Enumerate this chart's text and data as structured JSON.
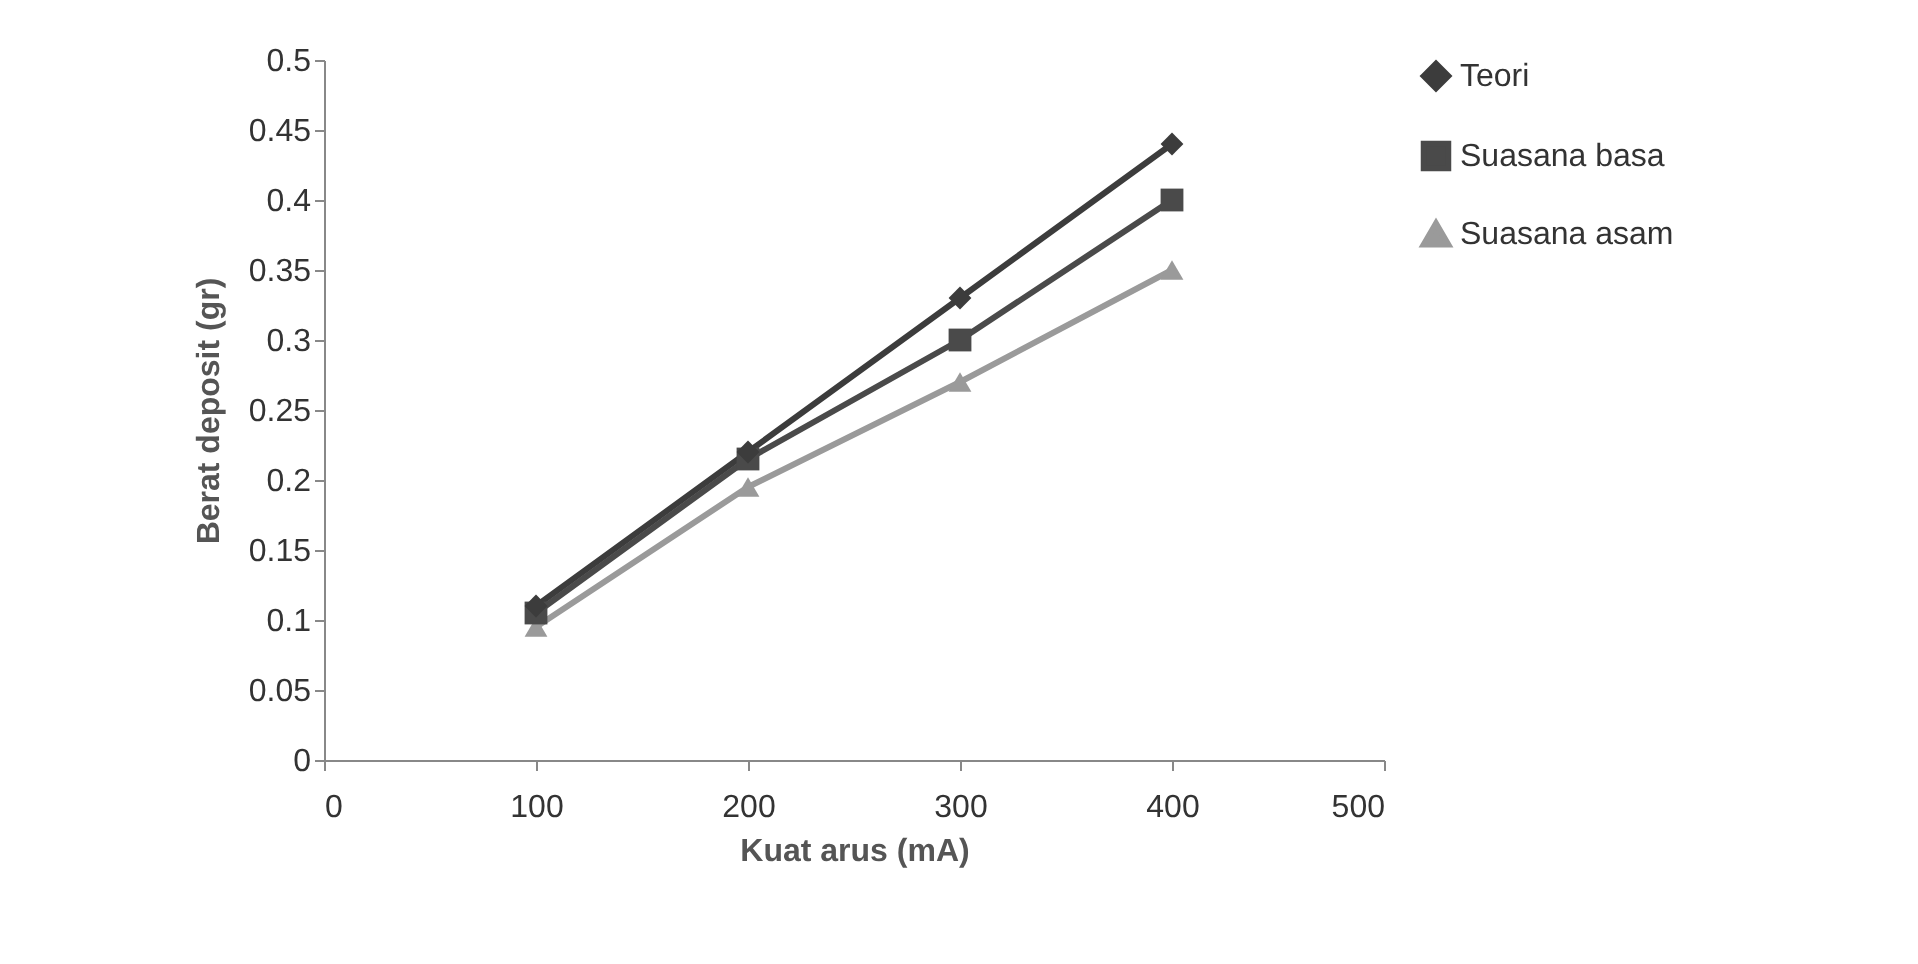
{
  "chart_data": {
    "type": "line",
    "xlabel": "Kuat arus (mA)",
    "ylabel": "Berat deposit     (gr)",
    "x": [
      100,
      200,
      300,
      400
    ],
    "series": [
      {
        "name": "Teori",
        "color": "#3c3c3c",
        "marker": "diamond",
        "values": [
          0.11,
          0.22,
          0.33,
          0.44
        ]
      },
      {
        "name": "Suasana basa",
        "color": "#4a4a4a",
        "marker": "square",
        "values": [
          0.105,
          0.215,
          0.3,
          0.4
        ]
      },
      {
        "name": "Suasana asam",
        "color": "#9a9a9a",
        "marker": "triangle",
        "values": [
          0.095,
          0.195,
          0.27,
          0.35
        ]
      }
    ],
    "xlim": [
      0,
      500
    ],
    "xticks": [
      0,
      100,
      200,
      300,
      400,
      500
    ],
    "ylim": [
      0,
      0.5
    ],
    "yticks": [
      0,
      0.05,
      0.1,
      0.15,
      0.2,
      0.25,
      0.3,
      0.35,
      0.4,
      0.45,
      0.5
    ],
    "grid": false,
    "legend": "right"
  }
}
